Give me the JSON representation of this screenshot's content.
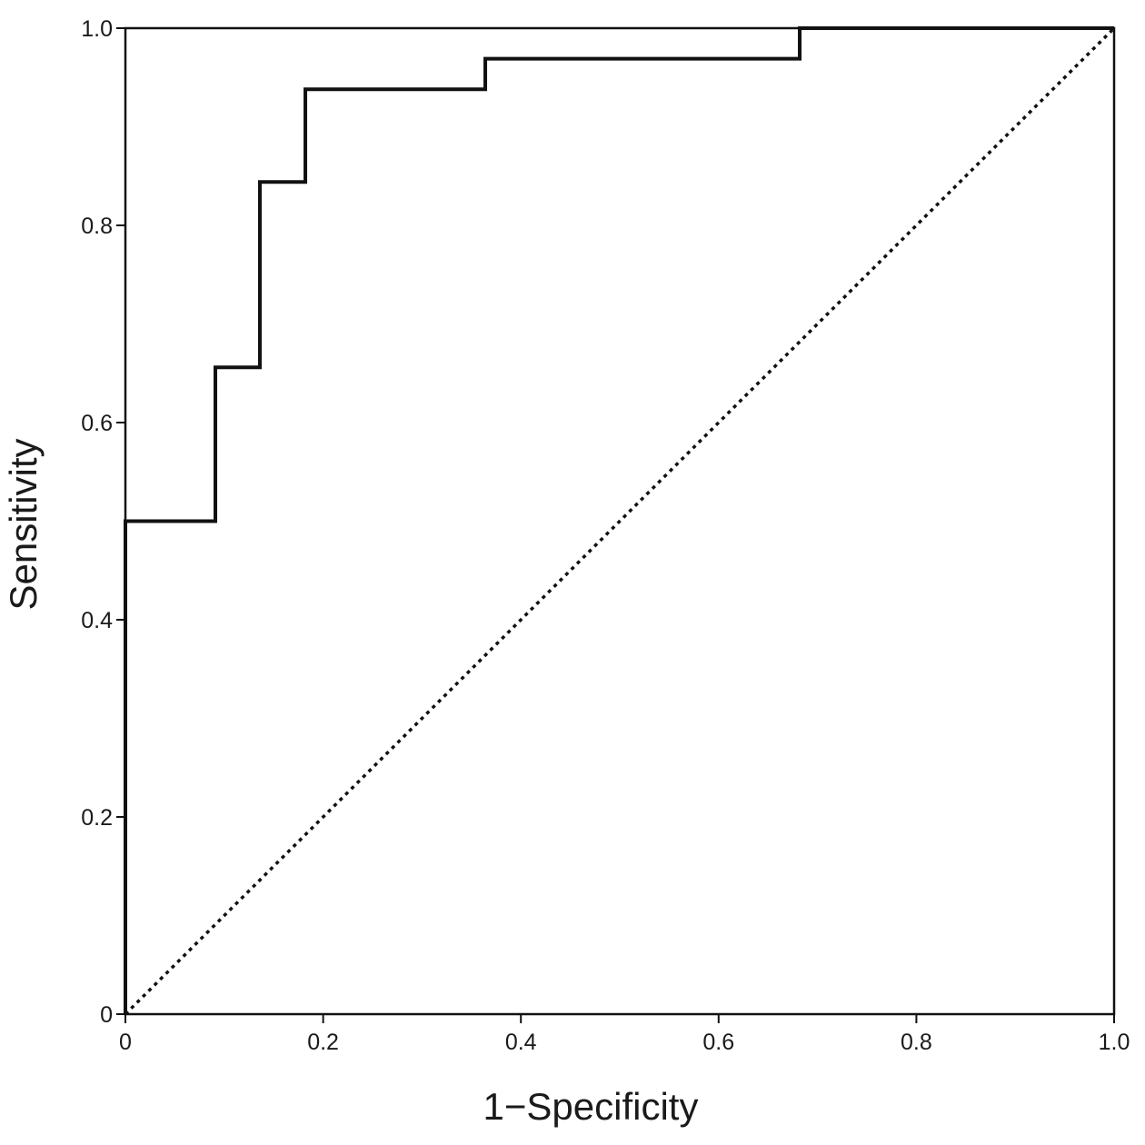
{
  "chart_data": {
    "type": "line",
    "title": "",
    "xlabel": "1−Specificity",
    "ylabel": "Sensitivity",
    "xlim": [
      0,
      1.0
    ],
    "ylim": [
      0,
      1.0
    ],
    "x_ticks": [
      {
        "value": 0,
        "label": "0"
      },
      {
        "value": 0.2,
        "label": "0.2"
      },
      {
        "value": 0.4,
        "label": "0.4"
      },
      {
        "value": 0.6,
        "label": "0.6"
      },
      {
        "value": 0.8,
        "label": "0.8"
      },
      {
        "value": 1.0,
        "label": "1.0"
      }
    ],
    "y_ticks": [
      {
        "value": 0,
        "label": "0"
      },
      {
        "value": 0.2,
        "label": "0.2"
      },
      {
        "value": 0.4,
        "label": "0.4"
      },
      {
        "value": 0.6,
        "label": "0.6"
      },
      {
        "value": 0.8,
        "label": "0.8"
      },
      {
        "value": 1.0,
        "label": "1.0"
      }
    ],
    "grid": false,
    "legend": "none",
    "series": [
      {
        "style": "solid",
        "color": "#111111",
        "points": [
          [
            0,
            0
          ],
          [
            0,
            0.5
          ],
          [
            0.091,
            0.5
          ],
          [
            0.091,
            0.656
          ],
          [
            0.136,
            0.656
          ],
          [
            0.136,
            0.844
          ],
          [
            0.182,
            0.844
          ],
          [
            0.182,
            0.938
          ],
          [
            0.364,
            0.938
          ],
          [
            0.364,
            0.969
          ],
          [
            0.682,
            0.969
          ],
          [
            0.682,
            1.0
          ],
          [
            1.0,
            1.0
          ]
        ]
      },
      {
        "style": "dotted",
        "color": "#111111",
        "points": [
          [
            0,
            0
          ],
          [
            1.0,
            1.0
          ]
        ]
      }
    ]
  }
}
